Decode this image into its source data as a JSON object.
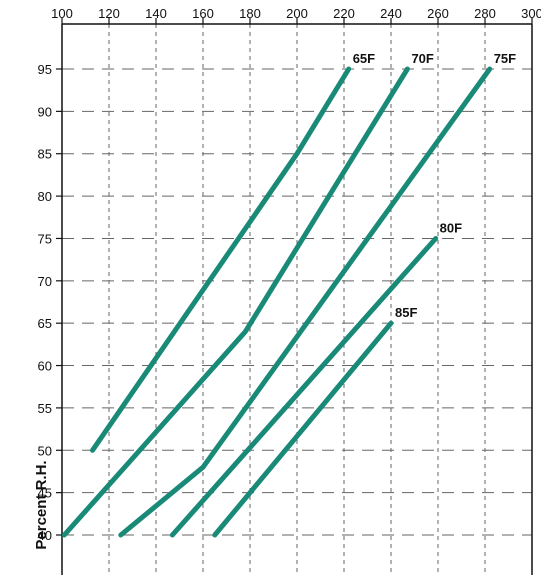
{
  "chart_data": {
    "type": "line",
    "title": "",
    "xlabel": "",
    "ylabel": "Percent R.H.",
    "xlim": [
      100,
      300
    ],
    "ylim": [
      37,
      99
    ],
    "x_ticks": [
      100,
      120,
      140,
      160,
      180,
      200,
      220,
      240,
      260,
      280,
      300
    ],
    "y_ticks": [
      40,
      45,
      50,
      55,
      60,
      65,
      70,
      75,
      80,
      85,
      90,
      95
    ],
    "x_tick_labels": [
      "100",
      "120",
      "140",
      "160",
      "180",
      "200",
      "220",
      "240",
      "260",
      "280",
      "300"
    ],
    "y_tick_labels": [
      "40",
      "45",
      "50",
      "55",
      "60",
      "65",
      "70",
      "75",
      "80",
      "85",
      "90",
      "95"
    ],
    "grid": true,
    "line_color": "#1a8a78",
    "grid_color": "#666666",
    "series": [
      {
        "name": "65F",
        "label": "65F",
        "points": [
          [
            113,
            50
          ],
          [
            200,
            85
          ],
          [
            222,
            95
          ]
        ]
      },
      {
        "name": "70F",
        "label": "70F",
        "points": [
          [
            101,
            40
          ],
          [
            178,
            64
          ],
          [
            247,
            95
          ]
        ]
      },
      {
        "name": "75F",
        "label": "75F",
        "points": [
          [
            125,
            40
          ],
          [
            160,
            48
          ],
          [
            282,
            95
          ]
        ]
      },
      {
        "name": "80F",
        "label": "80F",
        "points": [
          [
            147,
            40
          ],
          [
            259,
            75
          ]
        ]
      },
      {
        "name": "85F",
        "label": "85F",
        "points": [
          [
            165,
            40
          ],
          [
            240,
            65
          ]
        ]
      }
    ]
  }
}
